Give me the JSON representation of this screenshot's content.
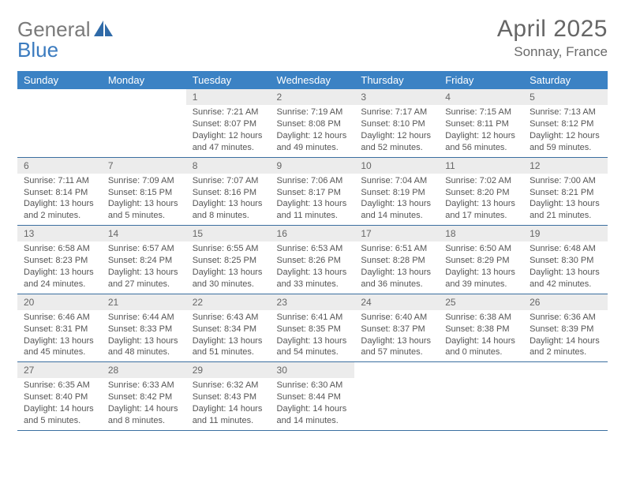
{
  "brand": {
    "part1": "General",
    "part2": "Blue"
  },
  "title": "April 2025",
  "location": "Sonnay, France",
  "colors": {
    "header_bg": "#3b82c4",
    "header_fg": "#ffffff",
    "daynum_bg": "#ececec",
    "text": "#555555",
    "rule": "#3b6fa0",
    "logo_gray": "#7a7a7a",
    "logo_blue": "#3b7bbf"
  },
  "weekdays": [
    "Sunday",
    "Monday",
    "Tuesday",
    "Wednesday",
    "Thursday",
    "Friday",
    "Saturday"
  ],
  "firstDayIndex": 2,
  "days": [
    {
      "n": 1,
      "sunrise": "7:21 AM",
      "sunset": "8:07 PM",
      "daylight": "12 hours and 47 minutes."
    },
    {
      "n": 2,
      "sunrise": "7:19 AM",
      "sunset": "8:08 PM",
      "daylight": "12 hours and 49 minutes."
    },
    {
      "n": 3,
      "sunrise": "7:17 AM",
      "sunset": "8:10 PM",
      "daylight": "12 hours and 52 minutes."
    },
    {
      "n": 4,
      "sunrise": "7:15 AM",
      "sunset": "8:11 PM",
      "daylight": "12 hours and 56 minutes."
    },
    {
      "n": 5,
      "sunrise": "7:13 AM",
      "sunset": "8:12 PM",
      "daylight": "12 hours and 59 minutes."
    },
    {
      "n": 6,
      "sunrise": "7:11 AM",
      "sunset": "8:14 PM",
      "daylight": "13 hours and 2 minutes."
    },
    {
      "n": 7,
      "sunrise": "7:09 AM",
      "sunset": "8:15 PM",
      "daylight": "13 hours and 5 minutes."
    },
    {
      "n": 8,
      "sunrise": "7:07 AM",
      "sunset": "8:16 PM",
      "daylight": "13 hours and 8 minutes."
    },
    {
      "n": 9,
      "sunrise": "7:06 AM",
      "sunset": "8:17 PM",
      "daylight": "13 hours and 11 minutes."
    },
    {
      "n": 10,
      "sunrise": "7:04 AM",
      "sunset": "8:19 PM",
      "daylight": "13 hours and 14 minutes."
    },
    {
      "n": 11,
      "sunrise": "7:02 AM",
      "sunset": "8:20 PM",
      "daylight": "13 hours and 17 minutes."
    },
    {
      "n": 12,
      "sunrise": "7:00 AM",
      "sunset": "8:21 PM",
      "daylight": "13 hours and 21 minutes."
    },
    {
      "n": 13,
      "sunrise": "6:58 AM",
      "sunset": "8:23 PM",
      "daylight": "13 hours and 24 minutes."
    },
    {
      "n": 14,
      "sunrise": "6:57 AM",
      "sunset": "8:24 PM",
      "daylight": "13 hours and 27 minutes."
    },
    {
      "n": 15,
      "sunrise": "6:55 AM",
      "sunset": "8:25 PM",
      "daylight": "13 hours and 30 minutes."
    },
    {
      "n": 16,
      "sunrise": "6:53 AM",
      "sunset": "8:26 PM",
      "daylight": "13 hours and 33 minutes."
    },
    {
      "n": 17,
      "sunrise": "6:51 AM",
      "sunset": "8:28 PM",
      "daylight": "13 hours and 36 minutes."
    },
    {
      "n": 18,
      "sunrise": "6:50 AM",
      "sunset": "8:29 PM",
      "daylight": "13 hours and 39 minutes."
    },
    {
      "n": 19,
      "sunrise": "6:48 AM",
      "sunset": "8:30 PM",
      "daylight": "13 hours and 42 minutes."
    },
    {
      "n": 20,
      "sunrise": "6:46 AM",
      "sunset": "8:31 PM",
      "daylight": "13 hours and 45 minutes."
    },
    {
      "n": 21,
      "sunrise": "6:44 AM",
      "sunset": "8:33 PM",
      "daylight": "13 hours and 48 minutes."
    },
    {
      "n": 22,
      "sunrise": "6:43 AM",
      "sunset": "8:34 PM",
      "daylight": "13 hours and 51 minutes."
    },
    {
      "n": 23,
      "sunrise": "6:41 AM",
      "sunset": "8:35 PM",
      "daylight": "13 hours and 54 minutes."
    },
    {
      "n": 24,
      "sunrise": "6:40 AM",
      "sunset": "8:37 PM",
      "daylight": "13 hours and 57 minutes."
    },
    {
      "n": 25,
      "sunrise": "6:38 AM",
      "sunset": "8:38 PM",
      "daylight": "14 hours and 0 minutes."
    },
    {
      "n": 26,
      "sunrise": "6:36 AM",
      "sunset": "8:39 PM",
      "daylight": "14 hours and 2 minutes."
    },
    {
      "n": 27,
      "sunrise": "6:35 AM",
      "sunset": "8:40 PM",
      "daylight": "14 hours and 5 minutes."
    },
    {
      "n": 28,
      "sunrise": "6:33 AM",
      "sunset": "8:42 PM",
      "daylight": "14 hours and 8 minutes."
    },
    {
      "n": 29,
      "sunrise": "6:32 AM",
      "sunset": "8:43 PM",
      "daylight": "14 hours and 11 minutes."
    },
    {
      "n": 30,
      "sunrise": "6:30 AM",
      "sunset": "8:44 PM",
      "daylight": "14 hours and 14 minutes."
    }
  ],
  "labels": {
    "sunrise": "Sunrise:",
    "sunset": "Sunset:",
    "daylight": "Daylight:"
  }
}
